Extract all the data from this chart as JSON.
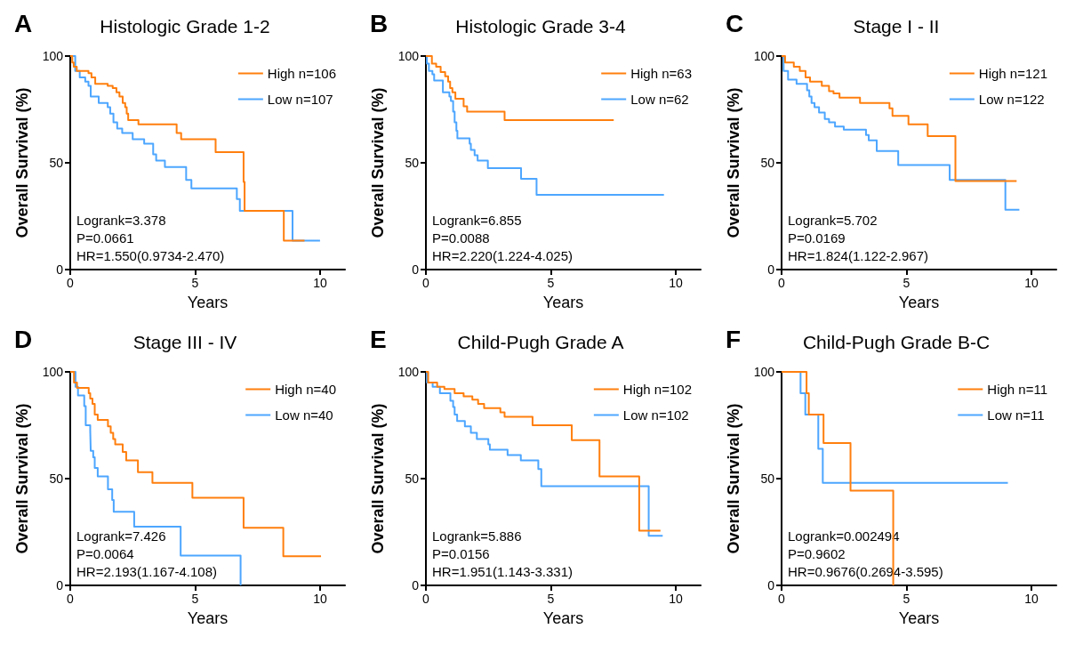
{
  "chart_data": [
    {
      "type": "step",
      "title": "Histologic Grade 1-2",
      "xlabel": "Years",
      "ylabel": "Overall Survival (%)",
      "annotations": [
        "A",
        "Logrank=3.378",
        "P=0.0661",
        "HR=1.550(0.9734-2.470)"
      ],
      "xlim": [
        0,
        11
      ],
      "xticks": [
        0,
        5,
        10
      ],
      "ylim": [
        0,
        100
      ],
      "yticks": [
        0,
        50,
        100
      ],
      "grid": false,
      "legend": "top right",
      "series": [
        {
          "name": "High n=106",
          "color": "#ff7f0e",
          "x": [
            0,
            0.08,
            0.14,
            0.26,
            0.73,
            0.85,
            1.0,
            1.5,
            1.7,
            1.85,
            1.97,
            2.1,
            2.2,
            2.26,
            2.32,
            2.73,
            4.26,
            4.44,
            5.82,
            6.94,
            6.98,
            8.55,
            9.38
          ],
          "values": [
            100,
            97,
            95,
            93,
            92,
            90,
            87,
            86,
            85,
            83,
            81,
            78,
            76,
            73,
            70,
            68,
            64,
            61,
            55,
            41,
            27.5,
            13.5,
            13.5
          ]
        },
        {
          "name": "Low n=107",
          "color": "#4da6ff",
          "x": [
            0,
            0.2,
            0.38,
            0.6,
            0.73,
            0.82,
            1.14,
            1.5,
            1.6,
            1.73,
            1.88,
            2.08,
            2.5,
            2.96,
            3.32,
            3.44,
            3.79,
            4.64,
            4.85,
            6.67,
            6.79,
            8.9,
            10.0
          ],
          "values": [
            100,
            93,
            90,
            88,
            86,
            81,
            78,
            76,
            73,
            69,
            66,
            64,
            61,
            59,
            54,
            51,
            48,
            42,
            38,
            33,
            27.5,
            13.5,
            13.5
          ]
        }
      ]
    },
    {
      "type": "step",
      "title": "Histologic Grade 3-4",
      "xlabel": "Years",
      "ylabel": "Overall Survival (%)",
      "annotations": [
        "B",
        "Logrank=6.855",
        "P=0.0088",
        "HR=2.220(1.224-4.025)"
      ],
      "xlim": [
        0,
        11
      ],
      "xticks": [
        0,
        5,
        10
      ],
      "ylim": [
        0,
        100
      ],
      "yticks": [
        0,
        50,
        100
      ],
      "grid": false,
      "legend": "top right",
      "series": [
        {
          "name": "High n=63",
          "color": "#ff7f0e",
          "x": [
            0,
            0.24,
            0.41,
            0.59,
            0.77,
            0.89,
            0.97,
            1.06,
            1.18,
            1.51,
            1.65,
            3.15,
            7.52
          ],
          "values": [
            100,
            96.5,
            95,
            92.5,
            90.5,
            88,
            85,
            83,
            80,
            76.5,
            74,
            70,
            70
          ]
        },
        {
          "name": "Low n=62",
          "color": "#4da6ff",
          "x": [
            0,
            0.04,
            0.12,
            0.26,
            0.33,
            0.68,
            0.94,
            1.0,
            1.09,
            1.15,
            1.22,
            1.26,
            1.75,
            1.8,
            1.95,
            2.07,
            2.48,
            3.81,
            4.43,
            9.53
          ],
          "values": [
            100,
            96.5,
            93,
            91.5,
            88.5,
            83,
            81,
            79,
            74,
            69,
            65,
            61.5,
            59,
            56,
            53.5,
            51,
            47.5,
            42.5,
            35,
            35
          ]
        }
      ]
    },
    {
      "type": "step",
      "title": "Stage I - II",
      "xlabel": "Years",
      "ylabel": "Overall Survival (%)",
      "annotations": [
        "C",
        "Logrank=5.702",
        "P=0.0169",
        "HR=1.824(1.122-2.967)"
      ],
      "xlim": [
        0,
        11
      ],
      "xticks": [
        0,
        5,
        10
      ],
      "ylim": [
        0,
        100
      ],
      "yticks": [
        0,
        50,
        100
      ],
      "grid": false,
      "legend": "top right",
      "series": [
        {
          "name": "High n=121",
          "color": "#ff7f0e",
          "x": [
            0,
            0.14,
            0.49,
            0.73,
            0.96,
            1.14,
            1.61,
            1.9,
            2.08,
            2.32,
            3.14,
            4.32,
            4.44,
            5.08,
            5.85,
            6.96,
            9.41
          ],
          "values": [
            100,
            97,
            95,
            93,
            90,
            88,
            86,
            83.5,
            82.5,
            80.5,
            78,
            75.5,
            72,
            68,
            62.5,
            41.5,
            41.5
          ]
        },
        {
          "name": "Low n=122",
          "color": "#4da6ff",
          "x": [
            0,
            0.08,
            0.26,
            0.6,
            1.02,
            1.11,
            1.2,
            1.32,
            1.5,
            1.73,
            1.9,
            2.14,
            2.49,
            3.38,
            3.49,
            3.81,
            4.67,
            6.73,
            8.96,
            9.52
          ],
          "values": [
            100,
            93,
            89,
            87,
            84,
            81,
            78,
            76,
            73.5,
            70.5,
            69,
            67,
            65.5,
            63,
            60.5,
            55.5,
            49,
            42,
            28,
            28
          ]
        }
      ]
    },
    {
      "type": "step",
      "title": "Stage III - IV",
      "xlabel": "Years",
      "ylabel": "Overall Survival (%)",
      "annotations": [
        "D",
        "Logrank=7.426",
        "P=0.0064",
        "HR=2.193(1.167-4.108)"
      ],
      "xlim": [
        0,
        11
      ],
      "xticks": [
        0,
        5,
        10
      ],
      "ylim": [
        0,
        100
      ],
      "yticks": [
        0,
        50,
        100
      ],
      "grid": false,
      "legend": "top right",
      "series": [
        {
          "name": "High n=40",
          "color": "#ff7f0e",
          "x": [
            0,
            0.15,
            0.27,
            0.74,
            0.8,
            0.89,
            0.98,
            1.1,
            1.51,
            1.62,
            1.72,
            1.8,
            2.1,
            2.24,
            2.71,
            3.29,
            4.89,
            6.94,
            8.53,
            10.04
          ],
          "values": [
            100,
            95,
            92.5,
            90,
            87.5,
            85,
            80,
            77.5,
            74.5,
            71.5,
            68.5,
            66,
            62.5,
            58.5,
            53,
            48,
            41,
            27,
            13.6,
            13.6
          ]
        },
        {
          "name": "Low n=40",
          "color": "#4da6ff",
          "x": [
            0,
            0.21,
            0.31,
            0.56,
            0.62,
            0.8,
            0.82,
            0.92,
            0.98,
            1.1,
            1.51,
            1.68,
            1.74,
            2.56,
            4.42,
            6.82
          ],
          "values": [
            100,
            93,
            89,
            84,
            75,
            72.5,
            63,
            60,
            55,
            51,
            45,
            40,
            34.5,
            27.5,
            14,
            0
          ]
        }
      ]
    },
    {
      "type": "step",
      "title": "Child-Pugh Grade A",
      "xlabel": "Years",
      "ylabel": "Overall Survival (%)",
      "annotations": [
        "E",
        "Logrank=5.886",
        "P=0.0156",
        "HR=1.951(1.143-3.331)"
      ],
      "xlim": [
        0,
        11
      ],
      "xticks": [
        0,
        5,
        10
      ],
      "ylim": [
        0,
        100
      ],
      "yticks": [
        0,
        50,
        100
      ],
      "grid": false,
      "legend": "top right",
      "series": [
        {
          "name": "High n=102",
          "color": "#ff7f0e",
          "x": [
            0,
            0.09,
            0.45,
            0.74,
            1.15,
            1.51,
            1.86,
            2.09,
            2.33,
            2.98,
            3.15,
            4.27,
            5.84,
            6.95,
            8.54,
            9.39
          ],
          "values": [
            100,
            95,
            93,
            92,
            90,
            88.5,
            87,
            85,
            83,
            81,
            79,
            75,
            68,
            51,
            25.6,
            25.6
          ]
        },
        {
          "name": "Low n=102",
          "color": "#4da6ff",
          "x": [
            0,
            0.04,
            0.27,
            0.56,
            0.98,
            1.09,
            1.15,
            1.25,
            1.56,
            1.8,
            2.04,
            2.5,
            2.56,
            3.27,
            3.8,
            4.5,
            4.62,
            8.92,
            9.48
          ],
          "values": [
            100,
            95,
            93,
            90,
            86.5,
            83.5,
            80,
            77,
            74.5,
            71.5,
            68.5,
            66,
            63.5,
            61,
            58.5,
            54.5,
            46.5,
            23.2,
            23.2
          ]
        }
      ]
    },
    {
      "type": "step",
      "title": "Child-Pugh Grade B-C",
      "xlabel": "Years",
      "ylabel": "Overall Survival (%)",
      "annotations": [
        "F",
        "Logrank=0.002494",
        "P=0.9602",
        "HR=0.9676(0.2694-3.595)"
      ],
      "xlim": [
        0,
        11
      ],
      "xticks": [
        0,
        5,
        10
      ],
      "ylim": [
        0,
        100
      ],
      "yticks": [
        0,
        50,
        100
      ],
      "grid": false,
      "legend": "top right",
      "series": [
        {
          "name": "High n=11",
          "color": "#ff7f0e",
          "x": [
            0,
            1.0,
            1.09,
            1.68,
            2.76,
            4.47
          ],
          "values": [
            100,
            90,
            80,
            66.7,
            44.4,
            0
          ]
        },
        {
          "name": "Low n=11",
          "color": "#4da6ff",
          "x": [
            0,
            0.76,
            0.95,
            1.47,
            1.65,
            9.06
          ],
          "values": [
            100,
            90,
            80,
            64,
            48,
            48
          ]
        }
      ]
    }
  ]
}
